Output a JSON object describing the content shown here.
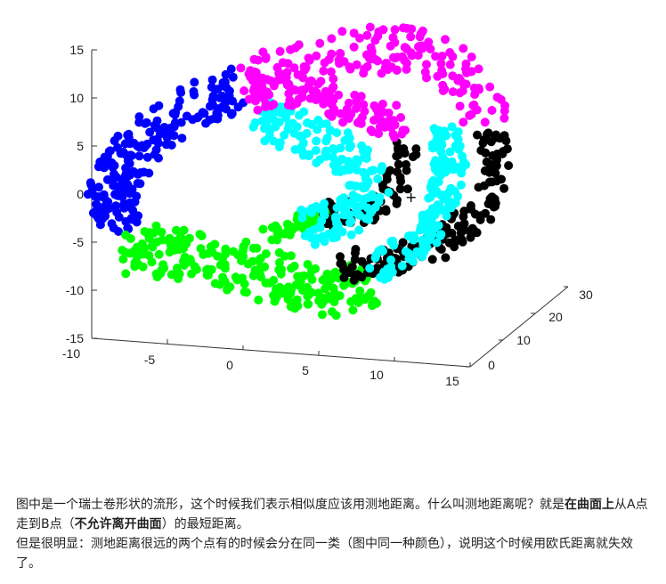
{
  "chart_data": {
    "type": "scatter",
    "projection": "3d",
    "title": "",
    "x_ticks": [
      "-10",
      "-5",
      "0",
      "5",
      "10",
      "15"
    ],
    "y_ticks": [
      "0",
      "10",
      "20",
      "30"
    ],
    "z_ticks": [
      "15",
      "10",
      "5",
      "0",
      "-5",
      "-10",
      "-15"
    ],
    "xlim": [
      -10,
      15
    ],
    "ylim": [
      0,
      30
    ],
    "zlim": [
      -15,
      15
    ],
    "grid": false,
    "marker": "+",
    "colors": {
      "blue": "#0000ff",
      "green": "#00ff00",
      "black": "#000000",
      "cyan": "#00ffff",
      "magenta": "#ff00ff"
    },
    "clusters": [
      {
        "color": "blue",
        "center": [
          -8,
          15,
          3
        ]
      },
      {
        "color": "green",
        "center": [
          -1,
          15,
          -8
        ]
      },
      {
        "color": "black",
        "center": [
          9,
          15,
          -2
        ]
      },
      {
        "color": "cyan",
        "center": [
          3,
          15,
          4
        ]
      },
      {
        "color": "magenta",
        "center": [
          0,
          15,
          11
        ]
      }
    ]
  },
  "caption": {
    "p1_a": "图中是一个瑞士卷形状的流形，这个时候我们表示相似度应该用测地距离。什么叫测地距离呢？就是",
    "p1_bold1": "在曲面上",
    "p1_b": "从A点走到B点（",
    "p1_bold2": "不允许离开曲面",
    "p1_c": "）的最短距离。",
    "p2": "但是很明显：测地距离很远的两个点有的时候会分在同一类（图中同一种颜色），说明这个时候用欧氏距离就失效了。"
  }
}
